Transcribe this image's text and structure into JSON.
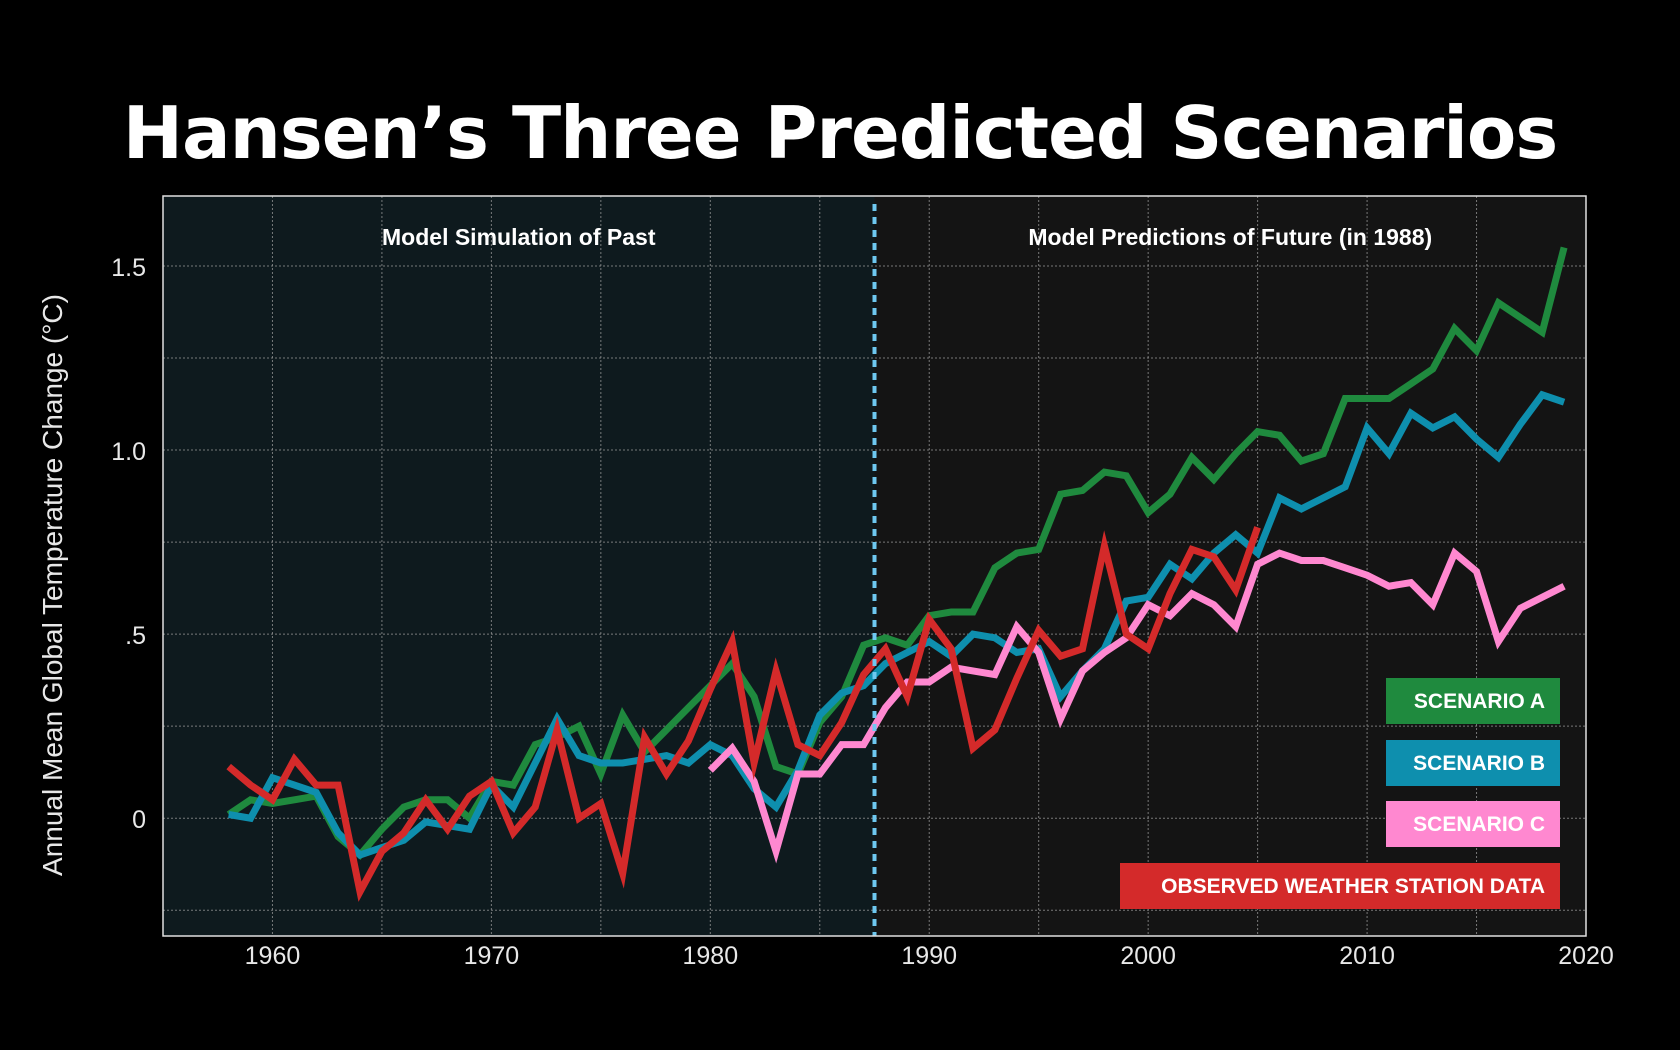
{
  "chart_data": {
    "type": "line",
    "title": "Hansen’s Three Predicted Scenarios",
    "ylabel": "Annual Mean Global Temperature Change (°C)",
    "xlabel": "",
    "xlim": [
      1955,
      2020
    ],
    "ylim": [
      -0.32,
      1.69
    ],
    "x_ticks": [
      1960,
      1970,
      1980,
      1990,
      2000,
      2010,
      2020
    ],
    "x_tick_labels": [
      "1960",
      "1970",
      "1980",
      "1990",
      "2000",
      "2010",
      "2020"
    ],
    "y_ticks": [
      0,
      0.5,
      1.0,
      1.5
    ],
    "y_tick_labels": [
      "0",
      ".5",
      "1.0",
      "1.5"
    ],
    "grid": true,
    "divider_x": 1987.5,
    "regions": [
      {
        "label": "Model Simulation of Past",
        "from": 1955,
        "to": 1987.5,
        "color": "#0e1a1e"
      },
      {
        "label": "Model Predictions of Future (in 1988)",
        "from": 1987.5,
        "to": 2020,
        "color": "#141414"
      }
    ],
    "legend_position": "bottom-right",
    "series": [
      {
        "name": "SCENARIO A",
        "color": "#1f8a3e",
        "x": [
          1958,
          1959,
          1960,
          1961,
          1962,
          1963,
          1964,
          1965,
          1966,
          1967,
          1968,
          1969,
          1970,
          1971,
          1972,
          1973,
          1974,
          1975,
          1976,
          1977,
          1978,
          1979,
          1980,
          1981,
          1982,
          1983,
          1984,
          1985,
          1986,
          1987,
          1988,
          1989,
          1990,
          1991,
          1992,
          1993,
          1994,
          1995,
          1996,
          1997,
          1998,
          1999,
          2000,
          2001,
          2002,
          2003,
          2004,
          2005,
          2006,
          2007,
          2008,
          2009,
          2010,
          2011,
          2012,
          2013,
          2014,
          2015,
          2016,
          2017,
          2018,
          2019
        ],
        "values": [
          0.01,
          0.05,
          0.04,
          0.05,
          0.06,
          -0.05,
          -0.1,
          -0.03,
          0.03,
          0.05,
          0.05,
          0.0,
          0.1,
          0.09,
          0.2,
          0.22,
          0.25,
          0.12,
          0.28,
          0.18,
          0.24,
          0.3,
          0.36,
          0.42,
          0.33,
          0.14,
          0.12,
          0.26,
          0.33,
          0.47,
          0.49,
          0.47,
          0.55,
          0.56,
          0.56,
          0.68,
          0.72,
          0.73,
          0.88,
          0.89,
          0.94,
          0.93,
          0.83,
          0.88,
          0.98,
          0.92,
          0.99,
          1.05,
          1.04,
          0.97,
          0.99,
          1.14,
          1.14,
          1.14,
          1.18,
          1.22,
          1.33,
          1.27,
          1.4,
          1.36,
          1.32,
          1.55
        ]
      },
      {
        "name": "SCENARIO B",
        "color": "#0e8fae",
        "x": [
          1958,
          1959,
          1960,
          1961,
          1962,
          1963,
          1964,
          1965,
          1966,
          1967,
          1968,
          1969,
          1970,
          1971,
          1972,
          1973,
          1974,
          1975,
          1976,
          1977,
          1978,
          1979,
          1980,
          1981,
          1982,
          1983,
          1984,
          1985,
          1986,
          1987,
          1988,
          1989,
          1990,
          1991,
          1992,
          1993,
          1994,
          1995,
          1996,
          1997,
          1998,
          1999,
          2000,
          2001,
          2002,
          2003,
          2004,
          2005,
          2006,
          2007,
          2008,
          2009,
          2010,
          2011,
          2012,
          2013,
          2014,
          2015,
          2016,
          2017,
          2018,
          2019
        ],
        "values": [
          0.01,
          0.0,
          0.11,
          0.09,
          0.07,
          -0.04,
          -0.1,
          -0.08,
          -0.06,
          -0.01,
          -0.02,
          -0.03,
          0.09,
          0.03,
          0.15,
          0.27,
          0.17,
          0.15,
          0.15,
          0.16,
          0.17,
          0.15,
          0.2,
          0.17,
          0.08,
          0.03,
          0.13,
          0.28,
          0.34,
          0.36,
          0.42,
          0.45,
          0.48,
          0.44,
          0.5,
          0.49,
          0.45,
          0.46,
          0.33,
          0.4,
          0.46,
          0.59,
          0.6,
          0.69,
          0.65,
          0.72,
          0.77,
          0.72,
          0.87,
          0.84,
          0.87,
          0.9,
          1.06,
          0.99,
          1.1,
          1.06,
          1.09,
          1.03,
          0.98,
          1.07,
          1.15,
          1.13
        ]
      },
      {
        "name": "SCENARIO C",
        "color": "#ff88d0",
        "x": [
          1980,
          1981,
          1982,
          1983,
          1984,
          1985,
          1986,
          1987,
          1988,
          1989,
          1990,
          1991,
          1992,
          1993,
          1994,
          1995,
          1996,
          1997,
          1998,
          1999,
          2000,
          2001,
          2002,
          2003,
          2004,
          2005,
          2006,
          2007,
          2008,
          2009,
          2010,
          2011,
          2012,
          2013,
          2014,
          2015,
          2016,
          2017,
          2018,
          2019
        ],
        "values": [
          0.13,
          0.19,
          0.1,
          -0.09,
          0.12,
          0.12,
          0.2,
          0.2,
          0.3,
          0.37,
          0.37,
          0.41,
          0.4,
          0.39,
          0.52,
          0.45,
          0.27,
          0.4,
          0.45,
          0.49,
          0.58,
          0.55,
          0.61,
          0.58,
          0.52,
          0.69,
          0.72,
          0.7,
          0.7,
          0.68,
          0.66,
          0.63,
          0.64,
          0.58,
          0.72,
          0.67,
          0.48,
          0.57,
          0.6,
          0.63
        ]
      },
      {
        "name": "OBSERVED WEATHER STATION DATA",
        "color": "#d42a2a",
        "x": [
          1958,
          1959,
          1960,
          1961,
          1962,
          1963,
          1964,
          1965,
          1966,
          1967,
          1968,
          1969,
          1970,
          1971,
          1972,
          1973,
          1974,
          1975,
          1976,
          1977,
          1978,
          1979,
          1980,
          1981,
          1982,
          1983,
          1984,
          1985,
          1986,
          1987,
          1988,
          1989,
          1990,
          1991,
          1992,
          1993,
          1994,
          1995,
          1996,
          1997,
          1998,
          1999,
          2000,
          2001,
          2002,
          2003,
          2004,
          2005
        ],
        "values": [
          0.14,
          0.09,
          0.05,
          0.16,
          0.09,
          0.09,
          -0.2,
          -0.09,
          -0.04,
          0.05,
          -0.03,
          0.06,
          0.1,
          -0.04,
          0.03,
          0.24,
          0.0,
          0.04,
          -0.15,
          0.22,
          0.12,
          0.21,
          0.35,
          0.48,
          0.15,
          0.4,
          0.2,
          0.17,
          0.26,
          0.39,
          0.46,
          0.33,
          0.54,
          0.46,
          0.19,
          0.24,
          0.38,
          0.51,
          0.44,
          0.46,
          0.74,
          0.5,
          0.46,
          0.61,
          0.73,
          0.71,
          0.62,
          0.79
        ]
      }
    ]
  }
}
